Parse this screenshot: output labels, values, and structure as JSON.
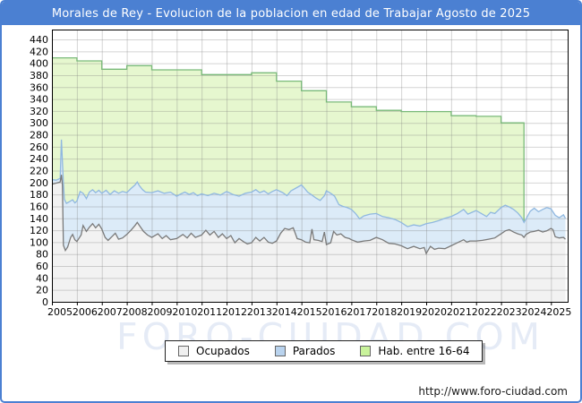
{
  "header": {
    "title": "Morales de Rey - Evolucion de la poblacion en edad de Trabajar Agosto de 2025",
    "bg_color": "#4b80d2"
  },
  "footer": {
    "url": "http://www.foro-ciudad.com"
  },
  "watermark": {
    "text": "FORO-CIUDAD.COM"
  },
  "legend": {
    "items": [
      {
        "label": "Ocupados",
        "swatch": "#f0f0f0"
      },
      {
        "label": "Parados",
        "swatch": "#b9d3ee"
      },
      {
        "label": "Hab. entre 16-64",
        "swatch": "#c9f39b"
      }
    ]
  },
  "chart_data": {
    "type": "area",
    "title": "Morales de Rey - Evolucion de la poblacion en edad de Trabajar Agosto de 2025",
    "xlabel": "",
    "ylabel": "",
    "x_axis": {
      "start": 2005.0,
      "end": 2025.67,
      "tick_years": [
        2005,
        2006,
        2007,
        2008,
        2009,
        2010,
        2011,
        2012,
        2013,
        2014,
        2015,
        2016,
        2017,
        2018,
        2019,
        2020,
        2021,
        2022,
        2023,
        2024,
        2025
      ]
    },
    "y_axis": {
      "min": 0,
      "max": 440,
      "step": 20
    },
    "grid": true,
    "legend_position": "bottom",
    "colors": {
      "grid": "#d8d8d8",
      "plot_border": "#000000"
    },
    "series": [
      {
        "name": "Hab. entre 16-64",
        "style": "step-yearly",
        "fill": "#e6f7cf",
        "line": "#7aba7a",
        "years": [
          2005,
          2006,
          2007,
          2008,
          2009,
          2010,
          2011,
          2012,
          2013,
          2014,
          2015,
          2016,
          2017,
          2018,
          2019,
          2020,
          2021,
          2022,
          2023
        ],
        "values": [
          409,
          404,
          390,
          396,
          389,
          389,
          381,
          381,
          384,
          370,
          354,
          335,
          327,
          321,
          319,
          319,
          312,
          311,
          300
        ],
        "end": 2023.92,
        "end_drop_visible_to": 135
      },
      {
        "name": "Parados",
        "note": "upper boundary of blue band (Ocupados+Parados stacked)",
        "fill": "#dcebf8",
        "line": "#90b8e0",
        "points": [
          [
            2005.0,
            205
          ],
          [
            2005.17,
            204
          ],
          [
            2005.33,
            207
          ],
          [
            2005.38,
            272
          ],
          [
            2005.46,
            200
          ],
          [
            2005.5,
            172
          ],
          [
            2005.58,
            165
          ],
          [
            2005.71,
            168
          ],
          [
            2005.83,
            171
          ],
          [
            2005.92,
            166
          ],
          [
            2006.0,
            169
          ],
          [
            2006.13,
            185
          ],
          [
            2006.25,
            182
          ],
          [
            2006.38,
            173
          ],
          [
            2006.5,
            184
          ],
          [
            2006.63,
            188
          ],
          [
            2006.75,
            183
          ],
          [
            2006.88,
            187
          ],
          [
            2007.0,
            182
          ],
          [
            2007.17,
            187
          ],
          [
            2007.33,
            180
          ],
          [
            2007.5,
            186
          ],
          [
            2007.67,
            182
          ],
          [
            2007.83,
            185
          ],
          [
            2008.0,
            183
          ],
          [
            2008.17,
            190
          ],
          [
            2008.33,
            196
          ],
          [
            2008.42,
            201
          ],
          [
            2008.5,
            195
          ],
          [
            2008.63,
            188
          ],
          [
            2008.75,
            184
          ],
          [
            2009.0,
            183
          ],
          [
            2009.25,
            186
          ],
          [
            2009.5,
            182
          ],
          [
            2009.75,
            184
          ],
          [
            2010.0,
            177
          ],
          [
            2010.17,
            181
          ],
          [
            2010.33,
            184
          ],
          [
            2010.5,
            180
          ],
          [
            2010.67,
            183
          ],
          [
            2010.83,
            178
          ],
          [
            2011.0,
            181
          ],
          [
            2011.25,
            178
          ],
          [
            2011.5,
            182
          ],
          [
            2011.75,
            179
          ],
          [
            2012.0,
            185
          ],
          [
            2012.25,
            180
          ],
          [
            2012.5,
            177
          ],
          [
            2012.75,
            182
          ],
          [
            2013.0,
            184
          ],
          [
            2013.17,
            188
          ],
          [
            2013.33,
            183
          ],
          [
            2013.5,
            186
          ],
          [
            2013.67,
            181
          ],
          [
            2013.83,
            185
          ],
          [
            2014.0,
            188
          ],
          [
            2014.25,
            183
          ],
          [
            2014.42,
            178
          ],
          [
            2014.58,
            186
          ],
          [
            2014.75,
            190
          ],
          [
            2015.0,
            196
          ],
          [
            2015.13,
            190
          ],
          [
            2015.25,
            184
          ],
          [
            2015.42,
            179
          ],
          [
            2015.58,
            174
          ],
          [
            2015.75,
            170
          ],
          [
            2015.92,
            178
          ],
          [
            2016.0,
            186
          ],
          [
            2016.17,
            182
          ],
          [
            2016.33,
            177
          ],
          [
            2016.5,
            163
          ],
          [
            2016.67,
            160
          ],
          [
            2016.83,
            158
          ],
          [
            2017.0,
            155
          ],
          [
            2017.17,
            148
          ],
          [
            2017.33,
            139
          ],
          [
            2017.5,
            144
          ],
          [
            2017.75,
            147
          ],
          [
            2018.0,
            148
          ],
          [
            2018.25,
            143
          ],
          [
            2018.5,
            141
          ],
          [
            2018.75,
            138
          ],
          [
            2019.0,
            133
          ],
          [
            2019.25,
            126
          ],
          [
            2019.5,
            129
          ],
          [
            2019.75,
            127
          ],
          [
            2020.0,
            131
          ],
          [
            2020.25,
            133
          ],
          [
            2020.5,
            136
          ],
          [
            2020.75,
            140
          ],
          [
            2021.0,
            143
          ],
          [
            2021.25,
            148
          ],
          [
            2021.5,
            155
          ],
          [
            2021.67,
            147
          ],
          [
            2021.83,
            150
          ],
          [
            2022.0,
            153
          ],
          [
            2022.25,
            147
          ],
          [
            2022.42,
            143
          ],
          [
            2022.58,
            150
          ],
          [
            2022.75,
            148
          ],
          [
            2023.0,
            158
          ],
          [
            2023.17,
            162
          ],
          [
            2023.33,
            159
          ],
          [
            2023.5,
            155
          ],
          [
            2023.67,
            149
          ],
          [
            2023.83,
            141
          ],
          [
            2023.92,
            133
          ],
          [
            2024.0,
            139
          ],
          [
            2024.17,
            152
          ],
          [
            2024.33,
            157
          ],
          [
            2024.5,
            151
          ],
          [
            2024.67,
            155
          ],
          [
            2024.83,
            158
          ],
          [
            2025.0,
            156
          ],
          [
            2025.17,
            145
          ],
          [
            2025.33,
            141
          ],
          [
            2025.5,
            146
          ],
          [
            2025.58,
            140
          ]
        ]
      },
      {
        "name": "Ocupados",
        "fill": "#f2f2f2",
        "line": "#7a7a7a",
        "points": [
          [
            2005.0,
            197
          ],
          [
            2005.17,
            199
          ],
          [
            2005.33,
            201
          ],
          [
            2005.38,
            213
          ],
          [
            2005.42,
            196
          ],
          [
            2005.46,
            95
          ],
          [
            2005.54,
            86
          ],
          [
            2005.63,
            92
          ],
          [
            2005.75,
            108
          ],
          [
            2005.83,
            113
          ],
          [
            2005.92,
            104
          ],
          [
            2006.0,
            101
          ],
          [
            2006.17,
            112
          ],
          [
            2006.25,
            128
          ],
          [
            2006.38,
            118
          ],
          [
            2006.5,
            125
          ],
          [
            2006.63,
            131
          ],
          [
            2006.75,
            124
          ],
          [
            2006.88,
            130
          ],
          [
            2007.0,
            122
          ],
          [
            2007.13,
            108
          ],
          [
            2007.25,
            103
          ],
          [
            2007.42,
            110
          ],
          [
            2007.54,
            115
          ],
          [
            2007.67,
            105
          ],
          [
            2007.83,
            107
          ],
          [
            2008.0,
            113
          ],
          [
            2008.17,
            120
          ],
          [
            2008.33,
            128
          ],
          [
            2008.42,
            133
          ],
          [
            2008.54,
            126
          ],
          [
            2008.67,
            118
          ],
          [
            2008.83,
            112
          ],
          [
            2009.0,
            108
          ],
          [
            2009.25,
            114
          ],
          [
            2009.42,
            106
          ],
          [
            2009.58,
            111
          ],
          [
            2009.75,
            104
          ],
          [
            2010.0,
            106
          ],
          [
            2010.25,
            113
          ],
          [
            2010.42,
            107
          ],
          [
            2010.58,
            115
          ],
          [
            2010.75,
            108
          ],
          [
            2011.0,
            112
          ],
          [
            2011.17,
            120
          ],
          [
            2011.33,
            112
          ],
          [
            2011.5,
            118
          ],
          [
            2011.67,
            108
          ],
          [
            2011.83,
            114
          ],
          [
            2012.0,
            106
          ],
          [
            2012.17,
            111
          ],
          [
            2012.33,
            99
          ],
          [
            2012.5,
            106
          ],
          [
            2012.67,
            101
          ],
          [
            2012.83,
            97
          ],
          [
            2013.0,
            99
          ],
          [
            2013.17,
            108
          ],
          [
            2013.33,
            102
          ],
          [
            2013.5,
            108
          ],
          [
            2013.67,
            100
          ],
          [
            2013.83,
            98
          ],
          [
            2014.0,
            102
          ],
          [
            2014.17,
            115
          ],
          [
            2014.33,
            123
          ],
          [
            2014.5,
            121
          ],
          [
            2014.67,
            124
          ],
          [
            2014.83,
            106
          ],
          [
            2015.0,
            104
          ],
          [
            2015.17,
            100
          ],
          [
            2015.33,
            99
          ],
          [
            2015.42,
            122
          ],
          [
            2015.5,
            104
          ],
          [
            2015.67,
            103
          ],
          [
            2015.83,
            101
          ],
          [
            2015.92,
            117
          ],
          [
            2016.0,
            96
          ],
          [
            2016.17,
            99
          ],
          [
            2016.29,
            118
          ],
          [
            2016.42,
            112
          ],
          [
            2016.58,
            114
          ],
          [
            2016.75,
            108
          ],
          [
            2016.92,
            106
          ],
          [
            2017.0,
            104
          ],
          [
            2017.25,
            100
          ],
          [
            2017.5,
            102
          ],
          [
            2017.75,
            103
          ],
          [
            2018.0,
            108
          ],
          [
            2018.25,
            104
          ],
          [
            2018.5,
            98
          ],
          [
            2018.75,
            97
          ],
          [
            2019.0,
            94
          ],
          [
            2019.25,
            89
          ],
          [
            2019.5,
            93
          ],
          [
            2019.75,
            89
          ],
          [
            2019.92,
            91
          ],
          [
            2020.0,
            81
          ],
          [
            2020.17,
            93
          ],
          [
            2020.33,
            88
          ],
          [
            2020.5,
            90
          ],
          [
            2020.75,
            89
          ],
          [
            2021.0,
            94
          ],
          [
            2021.25,
            99
          ],
          [
            2021.5,
            104
          ],
          [
            2021.63,
            100
          ],
          [
            2021.75,
            102
          ],
          [
            2022.0,
            102
          ],
          [
            2022.25,
            103
          ],
          [
            2022.5,
            105
          ],
          [
            2022.75,
            107
          ],
          [
            2023.0,
            114
          ],
          [
            2023.17,
            119
          ],
          [
            2023.33,
            121
          ],
          [
            2023.5,
            117
          ],
          [
            2023.67,
            114
          ],
          [
            2023.83,
            112
          ],
          [
            2023.92,
            108
          ],
          [
            2024.0,
            113
          ],
          [
            2024.17,
            117
          ],
          [
            2024.33,
            118
          ],
          [
            2024.5,
            120
          ],
          [
            2024.67,
            117
          ],
          [
            2024.83,
            119
          ],
          [
            2025.0,
            123
          ],
          [
            2025.08,
            121
          ],
          [
            2025.17,
            109
          ],
          [
            2025.33,
            107
          ],
          [
            2025.5,
            108
          ],
          [
            2025.58,
            105
          ]
        ]
      }
    ]
  }
}
